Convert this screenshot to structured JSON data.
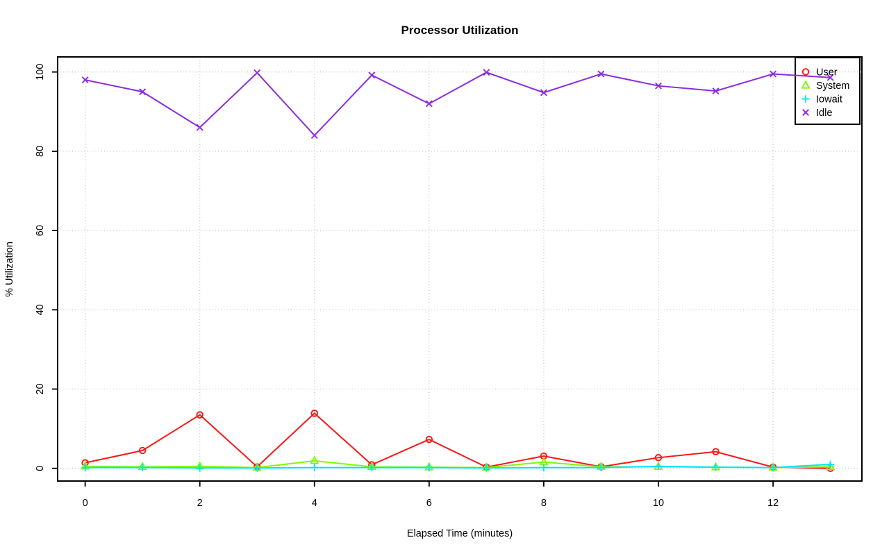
{
  "chart_data": {
    "type": "line",
    "title": "Processor Utilization",
    "xlabel": "Elapsed Time (minutes)",
    "ylabel": "% Utilization",
    "x": [
      0,
      1,
      2,
      3,
      4,
      5,
      6,
      7,
      8,
      9,
      10,
      11,
      12,
      13
    ],
    "series": [
      {
        "name": "User",
        "marker": "circle",
        "color": "#ff1414",
        "values": [
          1.4,
          4.5,
          13.5,
          0.4,
          13.9,
          0.9,
          7.3,
          0.3,
          3.1,
          0.4,
          2.7,
          4.2,
          0.3,
          0.0
        ]
      },
      {
        "name": "System",
        "marker": "triangle",
        "color": "#7cfc00",
        "values": [
          0.5,
          0.4,
          0.5,
          0.2,
          1.9,
          0.4,
          0.3,
          0.2,
          1.6,
          0.4,
          0.4,
          0.3,
          0.2,
          0.4
        ]
      },
      {
        "name": "Iowait",
        "marker": "plus",
        "color": "#00e5ff",
        "values": [
          0.2,
          0.2,
          0.1,
          0.1,
          0.2,
          0.2,
          0.2,
          0.1,
          0.2,
          0.2,
          0.5,
          0.3,
          0.2,
          1.0
        ]
      },
      {
        "name": "Idle",
        "marker": "x",
        "color": "#8b2be2",
        "values": [
          98.0,
          95.0,
          86.0,
          99.8,
          84.0,
          99.2,
          92.0,
          99.9,
          94.8,
          99.5,
          96.5,
          95.2,
          99.5,
          98.6
        ]
      }
    ],
    "x_ticks": [
      0,
      2,
      4,
      6,
      8,
      10,
      12
    ],
    "y_ticks": [
      0,
      20,
      40,
      60,
      80,
      100
    ],
    "xlim": [
      -0.48,
      13.55
    ],
    "ylim": [
      -3.2,
      103.8
    ],
    "grid": "dotted",
    "grid_color": "#c3c3c3",
    "axis_color": "#000000",
    "background_color": "#ffffff",
    "legend_position": "top-right"
  }
}
